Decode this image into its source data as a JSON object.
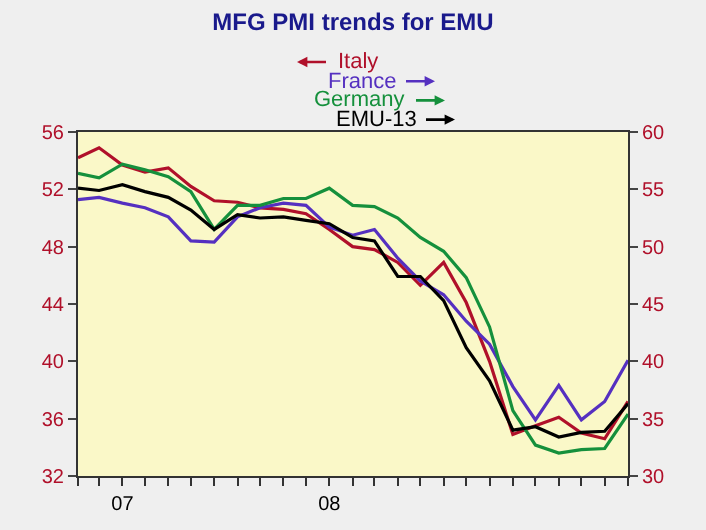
{
  "chart_data": {
    "type": "line",
    "title": "MFG PMI trends for EMU",
    "x": [
      "2007-02",
      "2007-03",
      "2007-04",
      "2007-05",
      "2007-06",
      "2007-07",
      "2007-08",
      "2007-09",
      "2007-10",
      "2007-11",
      "2007-12",
      "2008-01",
      "2008-02",
      "2008-03",
      "2008-04",
      "2008-05",
      "2008-06",
      "2008-07",
      "2008-08",
      "2008-09",
      "2008-10",
      "2008-11",
      "2008-12",
      "2009-01",
      "2009-02"
    ],
    "series": [
      {
        "name": "Italy",
        "color": "#b0102a",
        "axis": "y",
        "values": [
          54.2,
          54.9,
          53.7,
          53.2,
          53.5,
          52.2,
          51.2,
          51.1,
          50.7,
          50.6,
          50.3,
          49.2,
          48.0,
          47.8,
          46.9,
          45.3,
          46.9,
          44.1,
          40.0,
          34.9,
          35.5,
          36.1,
          35.0,
          34.6,
          37.2
        ]
      },
      {
        "name": "France",
        "color": "#5530c0",
        "axis": "y2",
        "values": [
          54.1,
          54.3,
          53.8,
          53.4,
          52.6,
          50.5,
          50.4,
          52.6,
          53.4,
          53.8,
          53.6,
          51.7,
          51.0,
          51.5,
          49.0,
          47.0,
          45.8,
          43.5,
          41.5,
          37.8,
          34.9,
          37.9,
          34.9,
          36.5,
          40.1
        ]
      },
      {
        "name": "Germany",
        "color": "#15903c",
        "axis": "y2",
        "values": [
          56.4,
          56.0,
          57.2,
          56.7,
          56.1,
          54.8,
          51.5,
          53.6,
          53.6,
          54.2,
          54.2,
          55.1,
          53.6,
          53.5,
          52.5,
          50.8,
          49.6,
          47.3,
          43.0,
          35.7,
          32.7,
          32.0,
          32.3,
          32.4,
          35.4
        ]
      },
      {
        "name": "EMU-13",
        "color": "#000000",
        "axis": "y2",
        "values": [
          55.1,
          54.9,
          55.4,
          54.8,
          54.3,
          53.2,
          51.5,
          52.8,
          52.5,
          52.6,
          52.3,
          52.0,
          50.8,
          50.5,
          47.4,
          47.4,
          45.3,
          41.2,
          38.3,
          34.0,
          34.3,
          33.4,
          33.8,
          33.9,
          36.3
        ]
      }
    ],
    "xlim": [
      "2007-02",
      "2009-02"
    ],
    "xticks": [
      {
        "value": "2007-02",
        "label": null
      },
      {
        "value": "2007-03",
        "label": null
      },
      {
        "value": "2007-04",
        "label": "07"
      },
      {
        "value": "2007-05",
        "label": null
      },
      {
        "value": "2007-06",
        "label": null
      },
      {
        "value": "2007-07",
        "label": null
      },
      {
        "value": "2007-08",
        "label": null
      },
      {
        "value": "2007-09",
        "label": null
      },
      {
        "value": "2007-10",
        "label": null
      },
      {
        "value": "2007-11",
        "label": null
      },
      {
        "value": "2007-12",
        "label": null
      },
      {
        "value": "2008-01",
        "label": "08"
      },
      {
        "value": "2008-02",
        "label": null
      },
      {
        "value": "2008-03",
        "label": null
      },
      {
        "value": "2008-04",
        "label": null
      },
      {
        "value": "2008-05",
        "label": null
      },
      {
        "value": "2008-06",
        "label": null
      },
      {
        "value": "2008-07",
        "label": null
      },
      {
        "value": "2008-08",
        "label": null
      },
      {
        "value": "2008-09",
        "label": null
      },
      {
        "value": "2008-10",
        "label": null
      },
      {
        "value": "2008-11",
        "label": null
      },
      {
        "value": "2008-12",
        "label": null
      },
      {
        "value": "2009-01",
        "label": null
      },
      {
        "value": "2009-02",
        "label": null
      }
    ],
    "ylim": [
      32,
      56
    ],
    "yticks": [
      32,
      36,
      40,
      44,
      48,
      52,
      56
    ],
    "y2lim": [
      30,
      60
    ],
    "y2ticks": [
      30,
      35,
      40,
      45,
      50,
      55,
      60
    ],
    "grid": false,
    "legend": "top",
    "line_style": "solid",
    "marker": "none"
  }
}
